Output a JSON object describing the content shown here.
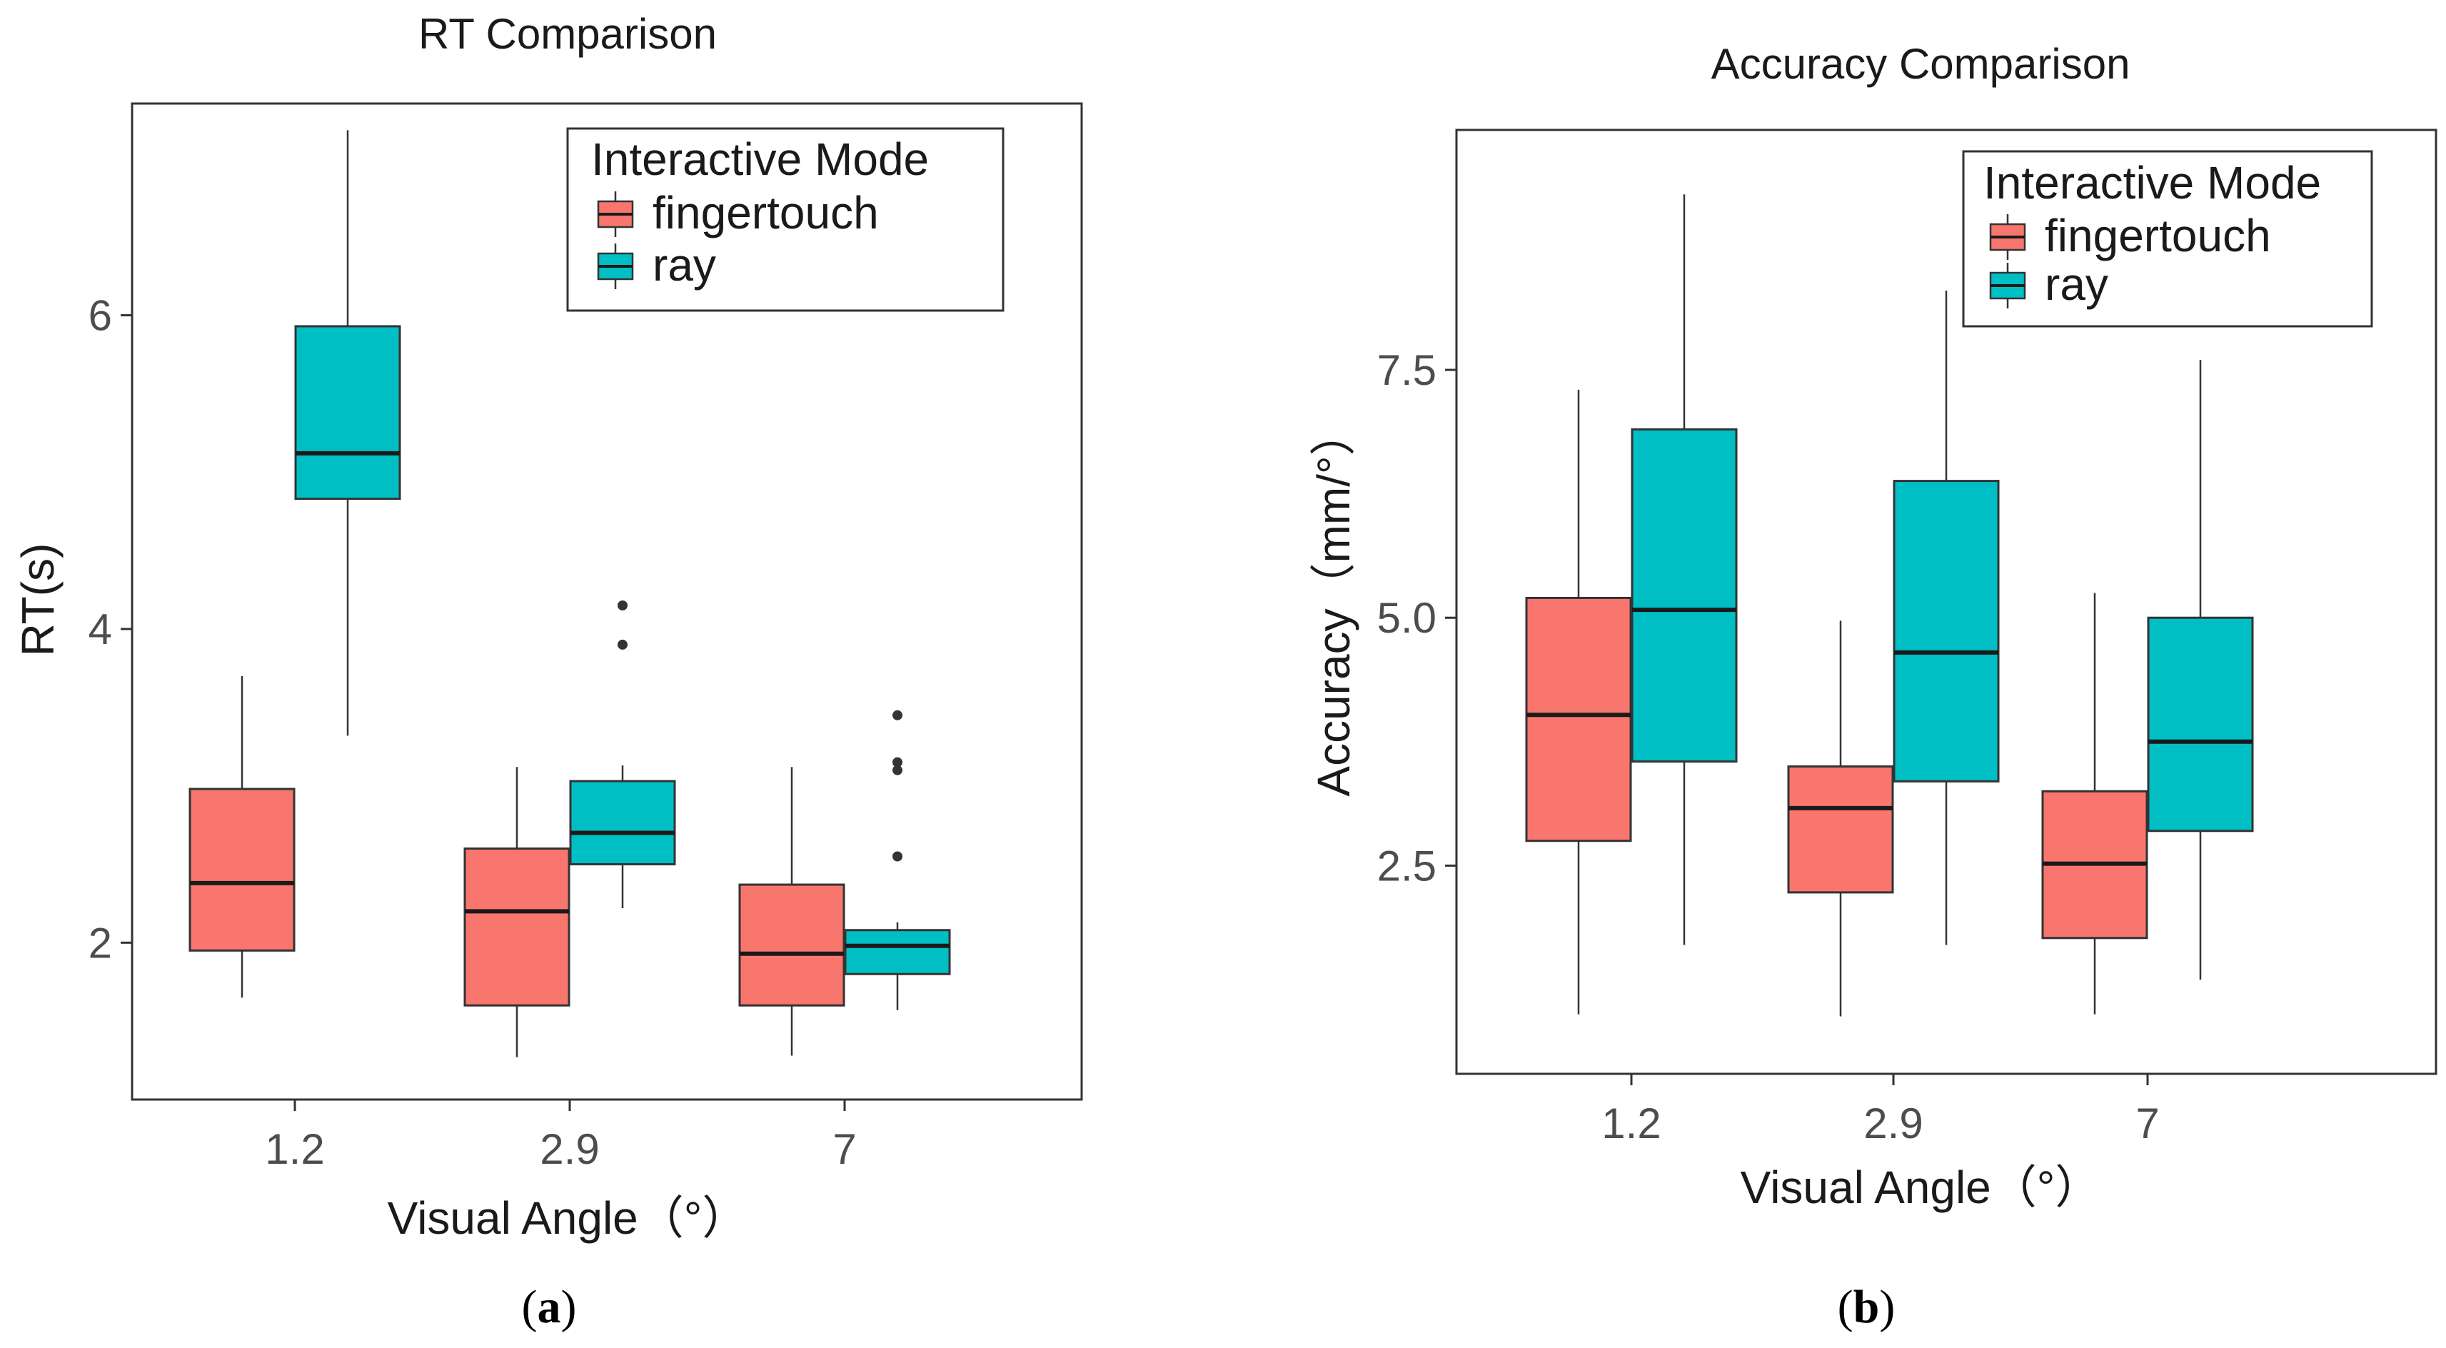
{
  "colors": {
    "fingertouch": "#F8766D",
    "ray": "#00BFC4",
    "line": "#333333",
    "median": "#1a1a1a",
    "frame": "#333333"
  },
  "chart_data": [
    {
      "type": "box",
      "title": "RT Comparison",
      "xlabel": "Visual Angle（°）",
      "ylabel": "RT(s)",
      "categories": [
        "1.2",
        "2.9",
        "7"
      ],
      "yticks": [
        2,
        4,
        6
      ],
      "ytick_labels": [
        "2",
        "4",
        "6"
      ],
      "ylim": [
        1.0,
        7.35
      ],
      "legend": {
        "title": "Interactive Mode",
        "position": "top-right",
        "entries": [
          "fingertouch",
          "ray"
        ]
      },
      "series": [
        {
          "name": "fingertouch",
          "boxes": [
            {
              "min": 1.65,
              "q1": 1.95,
              "median": 2.38,
              "q3": 2.98,
              "max": 3.7,
              "outliers": []
            },
            {
              "min": 1.27,
              "q1": 1.6,
              "median": 2.2,
              "q3": 2.6,
              "max": 3.12,
              "outliers": []
            },
            {
              "min": 1.28,
              "q1": 1.6,
              "median": 1.93,
              "q3": 2.37,
              "max": 3.12,
              "outliers": []
            }
          ]
        },
        {
          "name": "ray",
          "boxes": [
            {
              "min": 3.32,
              "q1": 4.83,
              "median": 5.12,
              "q3": 5.93,
              "max": 7.18,
              "outliers": []
            },
            {
              "min": 2.22,
              "q1": 2.5,
              "median": 2.7,
              "q3": 3.03,
              "max": 3.13,
              "outliers": [
                3.9,
                4.15
              ]
            },
            {
              "min": 1.57,
              "q1": 1.8,
              "median": 1.98,
              "q3": 2.08,
              "max": 2.13,
              "outliers": [
                2.55,
                3.1,
                3.15,
                3.45
              ]
            }
          ]
        }
      ]
    },
    {
      "type": "box",
      "title": "Accuracy Comparison",
      "xlabel": "Visual Angle（°）",
      "ylabel": "Accuracy（mm/°）",
      "categories": [
        "1.2",
        "2.9",
        "7"
      ],
      "yticks": [
        2.5,
        5.0,
        7.5
      ],
      "ytick_labels": [
        "2.5",
        "5.0",
        "7.5"
      ],
      "ylim": [
        0.4,
        9.92
      ],
      "legend": {
        "title": "Interactive Mode",
        "position": "top-right",
        "entries": [
          "fingertouch",
          "ray"
        ]
      },
      "series": [
        {
          "name": "fingertouch",
          "boxes": [
            {
              "min": 1.0,
              "q1": 2.75,
              "median": 4.02,
              "q3": 5.2,
              "max": 7.3,
              "outliers": []
            },
            {
              "min": 0.98,
              "q1": 2.23,
              "median": 3.08,
              "q3": 3.5,
              "max": 4.97,
              "outliers": []
            },
            {
              "min": 1.0,
              "q1": 1.77,
              "median": 2.52,
              "q3": 3.25,
              "max": 5.25,
              "outliers": []
            }
          ]
        },
        {
          "name": "ray",
          "boxes": [
            {
              "min": 1.7,
              "q1": 3.55,
              "median": 5.08,
              "q3": 6.9,
              "max": 9.27,
              "outliers": []
            },
            {
              "min": 1.7,
              "q1": 3.35,
              "median": 4.65,
              "q3": 6.38,
              "max": 8.3,
              "outliers": []
            },
            {
              "min": 1.35,
              "q1": 2.85,
              "median": 3.75,
              "q3": 5.0,
              "max": 7.6,
              "outliers": []
            }
          ]
        }
      ]
    }
  ],
  "panel_labels": [
    "a",
    "b"
  ]
}
